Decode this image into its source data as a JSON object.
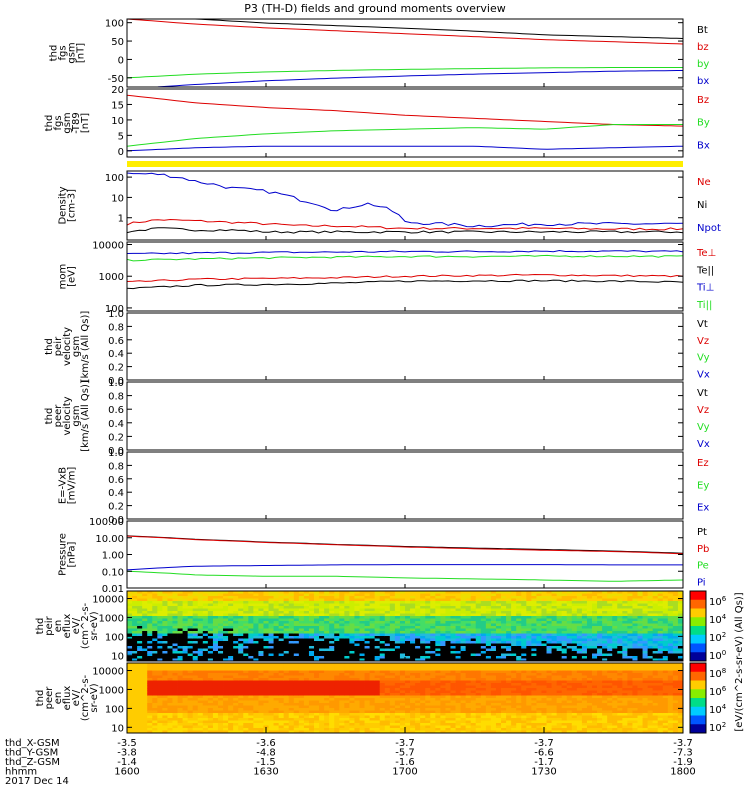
{
  "title": "P3 (TH-D) fields and ground moments overview",
  "date_label": "2017 Dec 14",
  "colors": {
    "black": "#000000",
    "red": "#dd0000",
    "green": "#22dd22",
    "blue": "#0000cc",
    "yellow": "#ffee00"
  },
  "chart_data": [
    {
      "type": "line",
      "id": "fgs-gsm",
      "ylabel": [
        "thd",
        "fgs",
        "gsm",
        "[nT]"
      ],
      "yticks": [
        "100",
        "50",
        "0",
        "-50"
      ],
      "ylim": [
        -75,
        110
      ],
      "x": [
        1600,
        1615,
        1630,
        1645,
        1700,
        1715,
        1730,
        1745,
        1800
      ],
      "series": [
        {
          "name": "Bt",
          "color": "#000000",
          "values": [
            130,
            110,
            99,
            92,
            85,
            77,
            67,
            62,
            57
          ]
        },
        {
          "name": "bz",
          "color": "#dd0000",
          "values": [
            110,
            96,
            86,
            78,
            70,
            62,
            54,
            48,
            42
          ]
        },
        {
          "name": "by",
          "color": "#22dd22",
          "values": [
            -50,
            -40,
            -34,
            -30,
            -27,
            -25,
            -23,
            -22,
            -22
          ]
        },
        {
          "name": "bx",
          "color": "#0000cc",
          "values": [
            -80,
            -68,
            -58,
            -51,
            -45,
            -40,
            -36,
            -32,
            -30
          ]
        }
      ]
    },
    {
      "type": "line",
      "id": "fgs-gsm-minus-t89",
      "ylabel": [
        "thd",
        "fgs",
        "gsm",
        "-T89",
        "[nT]"
      ],
      "yticks": [
        "20",
        "15",
        "10",
        "5",
        "0"
      ],
      "ylim": [
        -2,
        20
      ],
      "x": [
        1600,
        1615,
        1630,
        1645,
        1700,
        1715,
        1730,
        1745,
        1800
      ],
      "series": [
        {
          "name": "Bz",
          "color": "#dd0000",
          "values": [
            18,
            15.5,
            14,
            13,
            11.5,
            10.5,
            9.5,
            8.5,
            8
          ]
        },
        {
          "name": "By",
          "color": "#22dd22",
          "values": [
            1.5,
            4,
            5.5,
            6.5,
            7,
            7.5,
            7,
            8.5,
            8.5
          ]
        },
        {
          "name": "Bx",
          "color": "#0000cc",
          "values": [
            0,
            1,
            1.5,
            1.5,
            1.5,
            1.5,
            0.5,
            1,
            1.5
          ]
        }
      ]
    },
    {
      "type": "line",
      "id": "density",
      "log": true,
      "ylabel": [
        "Density",
        "[cm-3]"
      ],
      "yticks": [
        "100",
        "10",
        "1"
      ],
      "ylim": [
        0.08,
        200
      ],
      "x": [
        1600,
        1607,
        1615,
        1622,
        1630,
        1637,
        1645,
        1652,
        1700,
        1715,
        1730,
        1745,
        1800
      ],
      "series": [
        {
          "name": "Ne",
          "color": "#dd0000",
          "values": [
            0.5,
            0.8,
            0.7,
            0.6,
            0.5,
            0.4,
            0.4,
            0.35,
            0.3,
            0.3,
            0.3,
            0.28,
            0.28
          ]
        },
        {
          "name": "Ni",
          "color": "#000000",
          "values": [
            0.2,
            0.3,
            0.25,
            0.25,
            0.2,
            0.2,
            0.2,
            0.2,
            0.2,
            0.2,
            0.2,
            0.2,
            0.2
          ]
        },
        {
          "name": "Npot",
          "color": "#0000cc",
          "values": [
            150,
            140,
            60,
            30,
            20,
            8,
            2,
            5,
            0.6,
            0.4,
            0.5,
            0.5,
            0.5
          ]
        }
      ]
    },
    {
      "type": "line",
      "id": "temperature",
      "log": true,
      "ylabel": [
        "mom",
        "[eV]"
      ],
      "yticks": [
        "10000",
        "1000",
        "100"
      ],
      "ylim": [
        80,
        12000
      ],
      "x": [
        1600,
        1615,
        1630,
        1645,
        1700,
        1715,
        1730,
        1745,
        1800
      ],
      "series": [
        {
          "name": "Te⊥",
          "color": "#dd0000",
          "values": [
            650,
            800,
            850,
            900,
            1000,
            1050,
            1100,
            1050,
            1000
          ]
        },
        {
          "name": "Te||",
          "color": "#000000",
          "values": [
            400,
            520,
            550,
            600,
            700,
            720,
            720,
            700,
            650
          ]
        },
        {
          "name": "Ti⊥",
          "color": "#0000cc",
          "values": [
            5000,
            5400,
            5600,
            5800,
            6000,
            6000,
            6200,
            6200,
            6000
          ]
        },
        {
          "name": "Ti||",
          "color": "#22dd22",
          "values": [
            3200,
            3500,
            3800,
            4000,
            4200,
            4200,
            4300,
            4300,
            4200
          ]
        }
      ]
    },
    {
      "type": "line",
      "id": "peir-velocity",
      "empty": true,
      "ylabel": [
        "thd",
        "peir",
        "velocity",
        "gsm",
        "[km/s (All Qs)]"
      ],
      "yticks": [
        "1.0",
        "0.8",
        "0.6",
        "0.4",
        "0.2",
        "0.0"
      ],
      "ylim": [
        0,
        1
      ],
      "series": [
        {
          "name": "Vt",
          "color": "#000000"
        },
        {
          "name": "Vz",
          "color": "#dd0000"
        },
        {
          "name": "Vy",
          "color": "#22dd22"
        },
        {
          "name": "Vx",
          "color": "#0000cc"
        }
      ]
    },
    {
      "type": "line",
      "id": "peer-velocity",
      "empty": true,
      "ylabel": [
        "thd",
        "peer",
        "velocity",
        "gsm",
        "[km/s (All Qs)]"
      ],
      "yticks": [
        "1.0",
        "0.8",
        "0.6",
        "0.4",
        "0.2",
        "0.0"
      ],
      "ylim": [
        0,
        1
      ],
      "series": [
        {
          "name": "Vt",
          "color": "#000000"
        },
        {
          "name": "Vz",
          "color": "#dd0000"
        },
        {
          "name": "Vy",
          "color": "#22dd22"
        },
        {
          "name": "Vx",
          "color": "#0000cc"
        }
      ]
    },
    {
      "type": "line",
      "id": "efield",
      "empty": true,
      "ylabel": [
        "E=-VxB",
        "[mV/m]"
      ],
      "yticks": [
        "1.0",
        "0.8",
        "0.6",
        "0.4",
        "0.2",
        "0.0"
      ],
      "ylim": [
        0,
        1
      ],
      "series": [
        {
          "name": "Ez",
          "color": "#dd0000"
        },
        {
          "name": "Ey",
          "color": "#22dd22"
        },
        {
          "name": "Ex",
          "color": "#0000cc"
        }
      ]
    },
    {
      "type": "line",
      "id": "pressure",
      "log": true,
      "ylabel": [
        "Pressure",
        "[nPa]"
      ],
      "yticks": [
        "100.00",
        "10.00",
        "1.00",
        "0.10",
        "0.01"
      ],
      "ylim": [
        0.01,
        100
      ],
      "x": [
        1600,
        1615,
        1630,
        1645,
        1700,
        1715,
        1730,
        1745,
        1800
      ],
      "series": [
        {
          "name": "Pt",
          "color": "#000000",
          "values": [
            13,
            8,
            5.5,
            4,
            3,
            2.4,
            2,
            1.6,
            1.2
          ]
        },
        {
          "name": "Pb",
          "color": "#dd0000",
          "values": [
            12.5,
            7.6,
            5.2,
            3.8,
            2.8,
            2.2,
            1.8,
            1.5,
            1.1
          ]
        },
        {
          "name": "Pe",
          "color": "#22dd22",
          "values": [
            0.1,
            0.06,
            0.05,
            0.05,
            0.04,
            0.035,
            0.03,
            0.025,
            0.03
          ]
        },
        {
          "name": "Pi",
          "color": "#0000cc",
          "values": [
            0.12,
            0.2,
            0.22,
            0.24,
            0.25,
            0.25,
            0.25,
            0.24,
            0.24
          ]
        }
      ]
    },
    {
      "type": "heatmap",
      "id": "peir-en-eflux",
      "log": true,
      "ylabel": [
        "thd",
        "peir",
        "en",
        "eflux",
        "eV/",
        "(cm^2-s-",
        "sr-eV)"
      ],
      "yticks": [
        "10000",
        "1000",
        "100",
        "10"
      ],
      "ylim": [
        5,
        25000
      ],
      "zlabel": "[eV/(cm^2-s-sr-eV) (All Qs)]",
      "zticks": [
        "10^6",
        "10^4",
        "10^2",
        "10^0"
      ]
    },
    {
      "type": "heatmap",
      "id": "peer-en-eflux",
      "log": true,
      "ylabel": [
        "thd",
        "peer",
        "en",
        "eflux",
        "eV/",
        "(cm^2-s-",
        "sr-eV)"
      ],
      "yticks": [
        "10000",
        "1000",
        "100",
        "10"
      ],
      "ylim": [
        5,
        25000
      ],
      "zticks": [
        "10^8",
        "10^6",
        "10^4",
        "10^2"
      ]
    }
  ],
  "x_axis": {
    "row_labels": [
      "thd_X-GSM",
      "thd_Y-GSM",
      "thd_Z-GSM",
      "hhmm"
    ],
    "ticks": [
      {
        "X": "-3.5",
        "Y": "-3.8",
        "Z": "-1.4",
        "hhmm": "1600"
      },
      {
        "X": "-3.6",
        "Y": "-4.8",
        "Z": "-1.5",
        "hhmm": "1630"
      },
      {
        "X": "-3.7",
        "Y": "-5.7",
        "Z": "-1.6",
        "hhmm": "1700"
      },
      {
        "X": "-3.7",
        "Y": "-6.6",
        "Z": "-1.7",
        "hhmm": "1730"
      },
      {
        "X": "-3.7",
        "Y": "-7.3",
        "Z": "-1.9",
        "hhmm": "1800"
      }
    ]
  }
}
